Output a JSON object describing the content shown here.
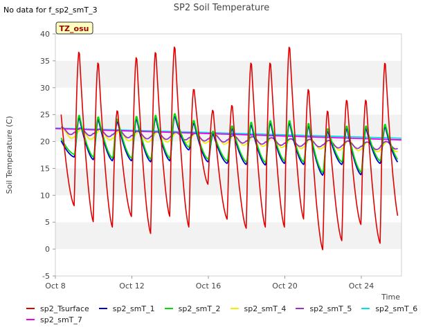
{
  "header": {
    "note": "No data for f_sp2_smT_3"
  },
  "chart_data": {
    "type": "line",
    "title": "SP2 Soil Temperature",
    "xlabel": "Time",
    "ylabel": "Soil Temperature (C)",
    "ylim": [
      -5,
      40
    ],
    "yticks": [
      "-5",
      "0",
      "5",
      "10",
      "15",
      "20",
      "25",
      "30",
      "35",
      "40"
    ],
    "xlim": [
      0,
      18.1
    ],
    "xticks": [
      {
        "x": 0,
        "label": "Oct 8"
      },
      {
        "x": 4,
        "label": "Oct 12"
      },
      {
        "x": 8,
        "label": "Oct 16"
      },
      {
        "x": 12,
        "label": "Oct 20"
      },
      {
        "x": 16,
        "label": "Oct 24"
      }
    ],
    "annotation": "TZ_osu",
    "grid": "horizontal bands",
    "legend_position": "bottom",
    "colors": {
      "sp2_Tsurface": "#e00000",
      "sp2_smT_1": "#0000cc",
      "sp2_smT_2": "#00dd00",
      "sp2_smT_4": "#f0f000",
      "sp2_smT_5": "#9a2fd0",
      "sp2_smT_6": "#00e0e0",
      "sp2_smT_7": "#ee00ee"
    },
    "daily": {
      "start_day": 8,
      "tsurface_max": [
        27,
        37,
        35,
        26,
        36,
        37,
        38,
        30,
        26,
        27,
        35,
        35,
        38,
        30,
        26,
        28,
        28,
        35
      ],
      "tsurface_min": [
        6,
        8,
        5,
        4,
        6,
        2.8,
        6,
        4,
        12,
        5.5,
        3.8,
        4,
        4,
        5.5,
        -0.2,
        1.5,
        4.5,
        1,
        5
      ],
      "smT2_max": [
        21,
        25,
        24.7,
        24.3,
        24.8,
        25,
        25.3,
        24,
        22,
        23,
        23.7,
        24,
        24,
        23.5,
        22.5,
        23,
        23,
        23.3
      ],
      "smT1_min": [
        17.5,
        17.2,
        16.7,
        16.5,
        16.5,
        16.3,
        16.5,
        18.5,
        16.3,
        16,
        15.8,
        15.7,
        16,
        15.8,
        13.8,
        15.8,
        13.9,
        16
      ],
      "smT4_mid": [
        21.5,
        21.3,
        21.2,
        21.0,
        20.8,
        20.8,
        20.7,
        20.6,
        20.4,
        20.2,
        20.0,
        19.8,
        19.6,
        19.5,
        19.3,
        19.2,
        19.0,
        19.0
      ],
      "smT5_mid": [
        22.0,
        21.8,
        21.6,
        21.4,
        21.2,
        21.1,
        21.0,
        20.8,
        20.6,
        20.4,
        20.2,
        20.0,
        19.8,
        19.7,
        19.5,
        19.4,
        19.2,
        19.3
      ]
    },
    "series": [
      {
        "name": "sp2_Tsurface"
      },
      {
        "name": "sp2_smT_1"
      },
      {
        "name": "sp2_smT_2"
      },
      {
        "name": "sp2_smT_4"
      },
      {
        "name": "sp2_smT_5"
      },
      {
        "name": "sp2_smT_6",
        "x": [
          0,
          18.1
        ],
        "values": [
          22.5,
          20.6
        ]
      },
      {
        "name": "sp2_smT_7",
        "x": [
          0,
          18.1
        ],
        "values": [
          22.4,
          20.3
        ]
      }
    ]
  }
}
